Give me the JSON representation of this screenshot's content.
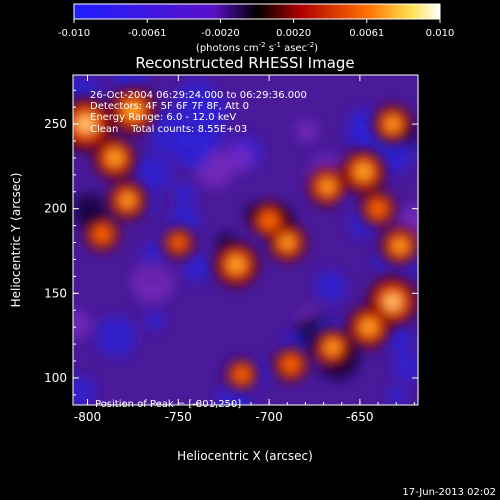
{
  "chart_data": {
    "type": "heatmap",
    "title": "Reconstructed RHESSI Image",
    "xlabel": "Heliocentric X (arcsec)",
    "ylabel": "Heliocentric Y (arcsec)",
    "xlim": [
      -808,
      -618
    ],
    "ylim": [
      84,
      279
    ],
    "x_ticks": [
      -800,
      -750,
      -700,
      -650
    ],
    "y_ticks": [
      100,
      150,
      200,
      250
    ],
    "colorbar": {
      "range": [
        -0.01,
        0.01
      ],
      "tick_labels": [
        "-0.010",
        "-0.0061",
        "-0.0020",
        "0.0020",
        "0.0061",
        "0.010"
      ],
      "label_parts": [
        "(photons cm",
        "-2",
        " s",
        "-1",
        " asec",
        "-2",
        ")"
      ]
    },
    "annotations": [
      "26-Oct-2004 06:29:24.000 to 06:29:36.000",
      "Detectors: 4F 5F 6F 7F 8F, Att 0",
      "Energy Range: 6.0 - 12.0 keV",
      "Clean    Total counts: 8.55E+03"
    ],
    "peak_label": "Position of Peak = [-801,250]",
    "sources": [
      {
        "x": -801,
        "y": 250,
        "value": 0.01
      },
      {
        "x": -775,
        "y": 258,
        "value": 0.008
      },
      {
        "x": -785,
        "y": 230,
        "value": 0.007
      },
      {
        "x": -778,
        "y": 205,
        "value": 0.006
      },
      {
        "x": -792,
        "y": 185,
        "value": 0.005
      },
      {
        "x": -718,
        "y": 167,
        "value": 0.0075
      },
      {
        "x": -690,
        "y": 180,
        "value": 0.006
      },
      {
        "x": -700,
        "y": 193,
        "value": 0.0055
      },
      {
        "x": -668,
        "y": 213,
        "value": 0.006
      },
      {
        "x": -648,
        "y": 222,
        "value": 0.0075
      },
      {
        "x": -632,
        "y": 250,
        "value": 0.006
      },
      {
        "x": -640,
        "y": 200,
        "value": 0.005
      },
      {
        "x": -628,
        "y": 178,
        "value": 0.006
      },
      {
        "x": -632,
        "y": 145,
        "value": 0.009
      },
      {
        "x": -645,
        "y": 130,
        "value": 0.007
      },
      {
        "x": -665,
        "y": 118,
        "value": 0.006
      },
      {
        "x": -688,
        "y": 108,
        "value": 0.005
      },
      {
        "x": -715,
        "y": 102,
        "value": 0.0045
      },
      {
        "x": -750,
        "y": 180,
        "value": 0.004
      }
    ]
  },
  "footer": {
    "timestamp": "17-Jun-2013 02:02"
  }
}
